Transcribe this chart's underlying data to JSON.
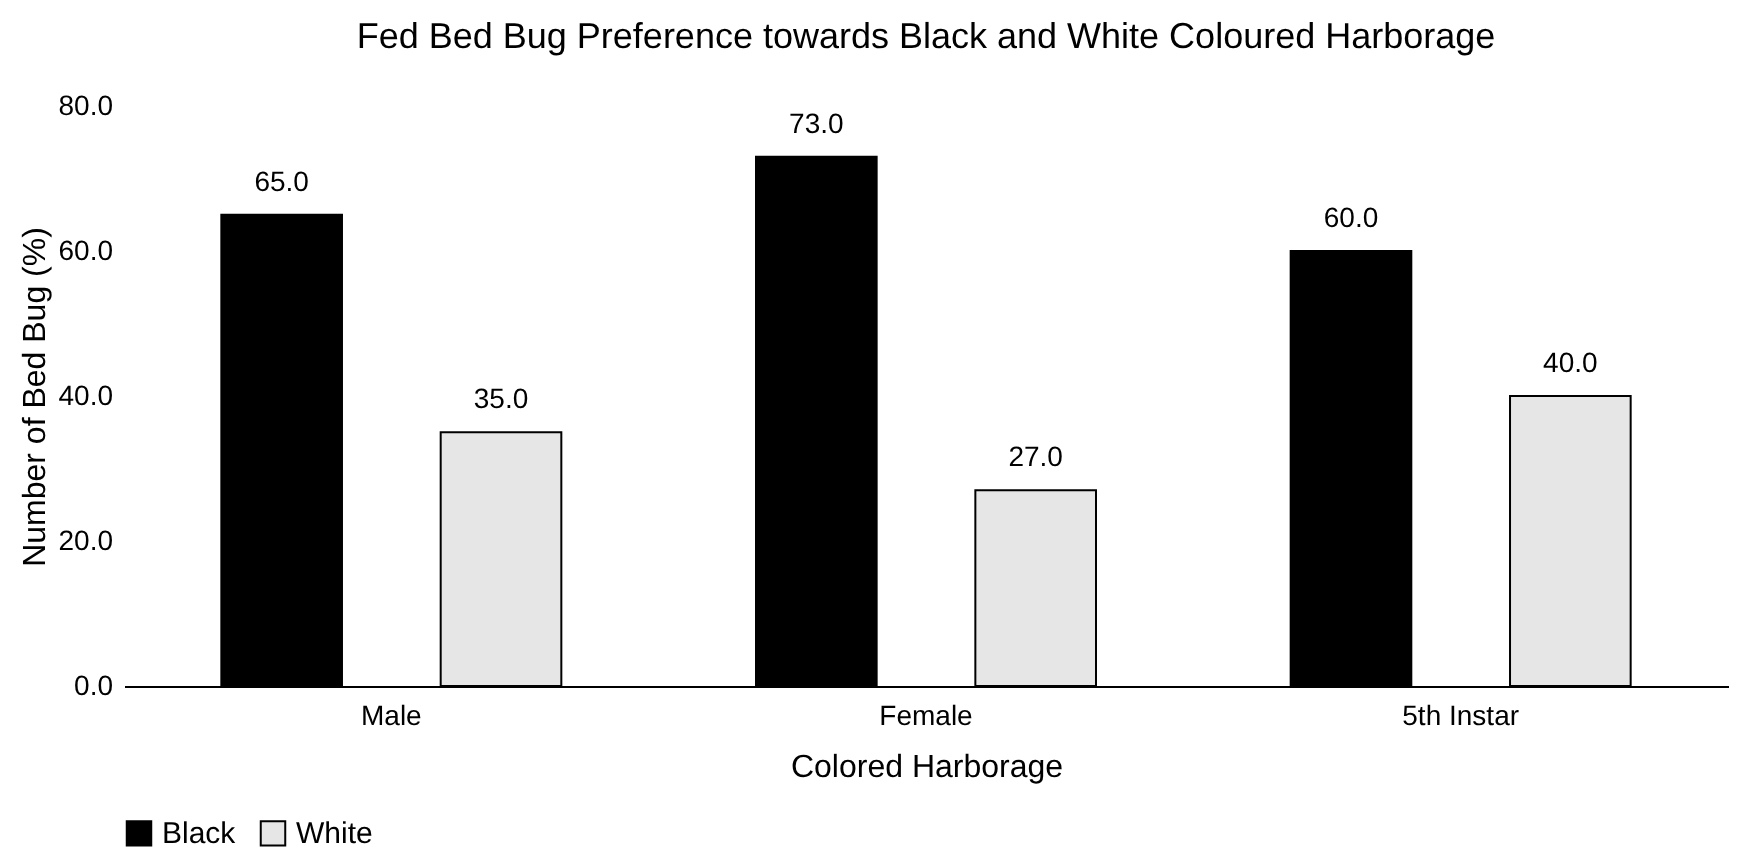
{
  "chart_data": {
    "type": "bar",
    "title": "Fed Bed Bug Preference towards Black and White Coloured Harborage",
    "xlabel": "Colored Harborage",
    "ylabel": "Number of Bed Bug (%)",
    "categories": [
      "Male",
      "Female",
      "5th Instar"
    ],
    "series": [
      {
        "name": "Black",
        "color": "#000000",
        "values": [
          65,
          73,
          60
        ],
        "value_labels": [
          "65.0",
          "73.0",
          "60.0"
        ]
      },
      {
        "name": "White",
        "color": "#e6e6e6",
        "values": [
          35,
          27,
          40
        ],
        "value_labels": [
          "35.0",
          "27.0",
          "40.0"
        ]
      }
    ],
    "ylim": [
      0,
      80
    ],
    "yticks": [
      {
        "value": 0,
        "label": "0.0"
      },
      {
        "value": 20,
        "label": "20.0"
      },
      {
        "value": 40,
        "label": "40.0"
      },
      {
        "value": 60,
        "label": "60.0"
      },
      {
        "value": 80,
        "label": "80.0"
      }
    ],
    "grid": false,
    "legend": "bottom"
  }
}
